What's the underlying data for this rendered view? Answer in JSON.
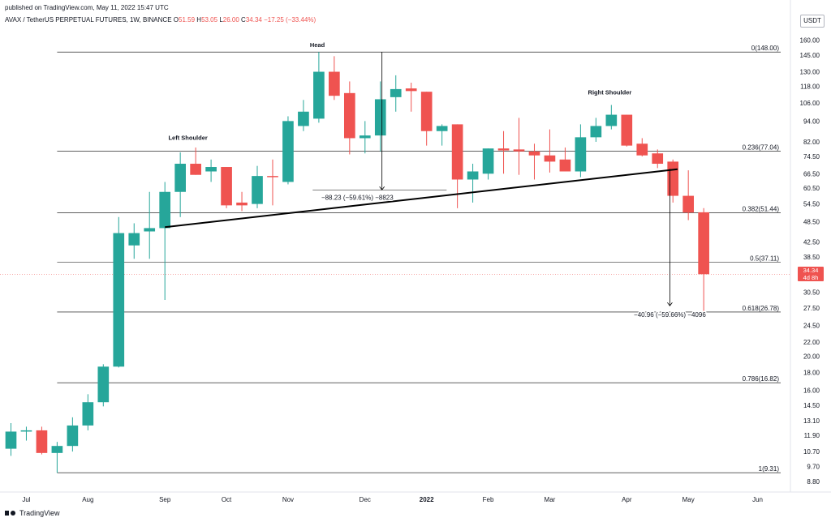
{
  "header": {
    "published": "published on TradingView.com, May 11, 2022 15:47 UTC",
    "symbol_prefix": "AVAX / TetherUS PERPETUAL FUTURES, 1W, BINANCE",
    "o_label": "O",
    "o_value": "51.59",
    "h_label": "H",
    "h_value": "53.05",
    "l_label": "L",
    "l_value": "26.00",
    "c_label": "C",
    "c_value": "34.34",
    "change": "−17.25 (−33.44%)"
  },
  "unit": "USDT",
  "price_tag": {
    "price": "34.34",
    "countdown": "4d 8h"
  },
  "logo_text": "TradingView",
  "colors": {
    "up": "#26a69a",
    "down": "#ef5350",
    "grid": "#000000",
    "axis_text": "#131722"
  },
  "chart_data": {
    "type": "candlestick",
    "interval": "1W",
    "y_scale": "log",
    "ylim": [
      8.2,
      172
    ],
    "y_ticks": [
      8.8,
      9.7,
      10.7,
      11.9,
      13.1,
      14.5,
      16.0,
      18.0,
      20.0,
      22.0,
      24.5,
      27.5,
      30.5,
      34.5,
      38.5,
      42.5,
      48.5,
      54.5,
      60.5,
      66.5,
      74.5,
      82.0,
      94.0,
      106.0,
      118.0,
      130.0,
      145.0,
      160.0
    ],
    "x_ticks": [
      "Jul",
      "Aug",
      "Sep",
      "Oct",
      "Nov",
      "Dec",
      "2022",
      "Feb",
      "Mar",
      "Apr",
      "May",
      "Jun"
    ],
    "x_tick_index": [
      1,
      5,
      10,
      14,
      18,
      23,
      27,
      31,
      35,
      40,
      44,
      48.5
    ],
    "candles": [
      {
        "o": 10.9,
        "h": 12.9,
        "l": 10.4,
        "c": 12.2
      },
      {
        "o": 12.2,
        "h": 12.6,
        "l": 11.5,
        "c": 12.3
      },
      {
        "o": 12.3,
        "h": 12.6,
        "l": 10.5,
        "c": 10.6
      },
      {
        "o": 10.6,
        "h": 11.4,
        "l": 9.3,
        "c": 11.1
      },
      {
        "o": 11.1,
        "h": 13.4,
        "l": 10.7,
        "c": 12.7
      },
      {
        "o": 12.7,
        "h": 15.6,
        "l": 12.3,
        "c": 14.8
      },
      {
        "o": 14.8,
        "h": 19.0,
        "l": 14.4,
        "c": 18.7
      },
      {
        "o": 18.7,
        "h": 50.0,
        "l": 18.6,
        "c": 45.0
      },
      {
        "o": 41.5,
        "h": 48.0,
        "l": 38.0,
        "c": 45.0
      },
      {
        "o": 45.5,
        "h": 59.0,
        "l": 38.0,
        "c": 46.5
      },
      {
        "o": 46.5,
        "h": 63.0,
        "l": 29.0,
        "c": 59.0
      },
      {
        "o": 59.0,
        "h": 76.5,
        "l": 50.0,
        "c": 71.0
      },
      {
        "o": 71.0,
        "h": 79.0,
        "l": 66.0,
        "c": 66.0
      },
      {
        "o": 67.5,
        "h": 73.0,
        "l": 63.0,
        "c": 69.5
      },
      {
        "o": 69.5,
        "h": 69.5,
        "l": 53.0,
        "c": 54.0
      },
      {
        "o": 55.0,
        "h": 59.0,
        "l": 52.0,
        "c": 54.0
      },
      {
        "o": 54.5,
        "h": 70.0,
        "l": 53.0,
        "c": 65.5
      },
      {
        "o": 65.5,
        "h": 73.0,
        "l": 54.0,
        "c": 65.0
      },
      {
        "o": 63.0,
        "h": 97.0,
        "l": 62.0,
        "c": 94.0
      },
      {
        "o": 91.0,
        "h": 108.0,
        "l": 88.0,
        "c": 100.0
      },
      {
        "o": 95.5,
        "h": 148.0,
        "l": 93.0,
        "c": 130.0
      },
      {
        "o": 130.0,
        "h": 144.0,
        "l": 108.0,
        "c": 111.0
      },
      {
        "o": 113.0,
        "h": 122.0,
        "l": 75.5,
        "c": 84.0
      },
      {
        "o": 84.0,
        "h": 94.0,
        "l": 76.0,
        "c": 85.5
      },
      {
        "o": 85.5,
        "h": 122.0,
        "l": 77.0,
        "c": 108.5
      },
      {
        "o": 110.0,
        "h": 127.0,
        "l": 100.0,
        "c": 116.0
      },
      {
        "o": 116.5,
        "h": 121.0,
        "l": 100.0,
        "c": 114.5
      },
      {
        "o": 114.0,
        "h": 114.0,
        "l": 80.0,
        "c": 88.0
      },
      {
        "o": 88.0,
        "h": 92.0,
        "l": 80.0,
        "c": 91.0
      },
      {
        "o": 92.0,
        "h": 92.0,
        "l": 53.0,
        "c": 64.0
      },
      {
        "o": 64.0,
        "h": 71.0,
        "l": 55.0,
        "c": 67.5
      },
      {
        "o": 66.5,
        "h": 78.5,
        "l": 64.0,
        "c": 78.5
      },
      {
        "o": 78.5,
        "h": 88.0,
        "l": 66.5,
        "c": 77.5
      },
      {
        "o": 78.0,
        "h": 96.0,
        "l": 66.0,
        "c": 77.0
      },
      {
        "o": 77.0,
        "h": 81.0,
        "l": 64.0,
        "c": 75.0
      },
      {
        "o": 75.0,
        "h": 89.0,
        "l": 67.0,
        "c": 72.0
      },
      {
        "o": 73.0,
        "h": 79.0,
        "l": 67.5,
        "c": 67.5
      },
      {
        "o": 67.5,
        "h": 92.0,
        "l": 65.0,
        "c": 84.5
      },
      {
        "o": 84.5,
        "h": 96.0,
        "l": 82.0,
        "c": 91.0
      },
      {
        "o": 91.0,
        "h": 104.5,
        "l": 89.0,
        "c": 98.0
      },
      {
        "o": 98.0,
        "h": 98.0,
        "l": 79.5,
        "c": 80.0
      },
      {
        "o": 81.0,
        "h": 84.0,
        "l": 74.5,
        "c": 75.0
      },
      {
        "o": 76.0,
        "h": 78.0,
        "l": 69.0,
        "c": 71.0
      },
      {
        "o": 72.0,
        "h": 73.0,
        "l": 55.0,
        "c": 57.5
      },
      {
        "o": 57.5,
        "h": 68.0,
        "l": 49.0,
        "c": 51.5
      },
      {
        "o": 51.6,
        "h": 53.05,
        "l": 26.0,
        "c": 34.34
      }
    ],
    "fib_levels": [
      {
        "ratio": "0",
        "price": 148.0,
        "label": "0(148.00)"
      },
      {
        "ratio": "0.236",
        "price": 77.04,
        "label": "0.236(77.04)"
      },
      {
        "ratio": "0.382",
        "price": 51.44,
        "label": "0.382(51.44)"
      },
      {
        "ratio": "0.5",
        "price": 37.11,
        "label": "0.5(37.11)"
      },
      {
        "ratio": "0.618",
        "price": 26.78,
        "label": "0.618(26.78)"
      },
      {
        "ratio": "0.786",
        "price": 16.82,
        "label": "0.786(16.82)"
      },
      {
        "ratio": "1",
        "price": 9.31,
        "label": "1(9.31)"
      }
    ],
    "fib_start_index": 3,
    "neckline": {
      "x1": 10,
      "y1": 46.8,
      "x2": 43.3,
      "y2": 68.5
    },
    "annotations": [
      {
        "text": "Left Shoulder",
        "x": 11.5,
        "y": 83
      },
      {
        "text": "Head",
        "x": 19.9,
        "y": 153
      },
      {
        "text": "Right Shoulder",
        "x": 38.9,
        "y": 112
      }
    ],
    "measure_1": {
      "x": 24.1,
      "y_top": 148.0,
      "y_bottom": 59.8,
      "bar_x1": 19.6,
      "bar_x2": 28.3,
      "text": "−88.23 (−59.61%) −8823",
      "text_x": 22.5,
      "text_y": 56.0
    },
    "measure_2": {
      "x": 42.8,
      "y_top": 68.7,
      "y_bottom": 27.9,
      "text": "−40.96 (−59.66%) −4096",
      "text_x": 42.8,
      "text_y": 25.9
    },
    "last_price": 34.34
  }
}
